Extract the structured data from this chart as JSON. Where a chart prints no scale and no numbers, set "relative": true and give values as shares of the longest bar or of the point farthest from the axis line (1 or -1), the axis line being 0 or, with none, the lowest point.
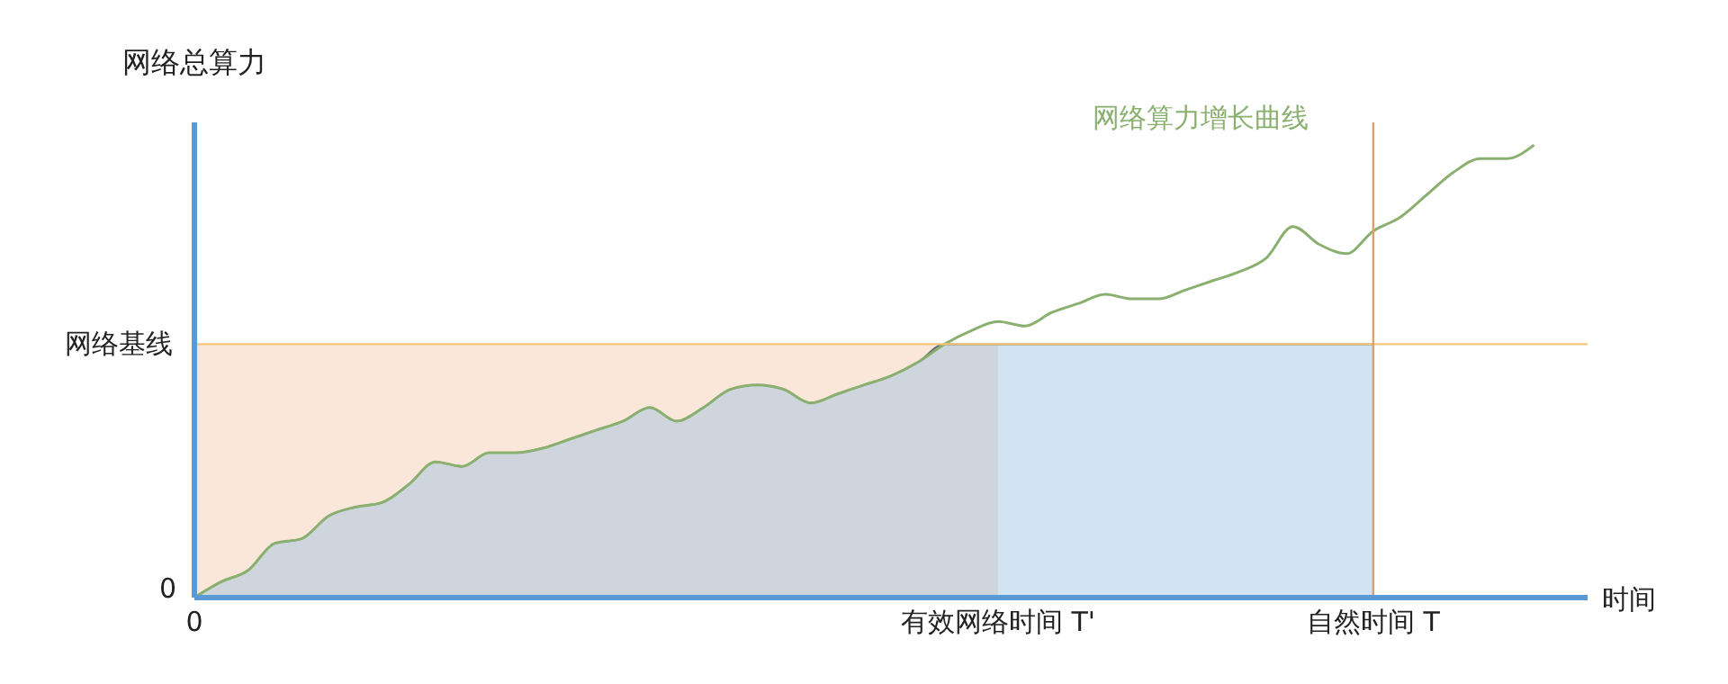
{
  "chart_data": {
    "type": "line",
    "relative": true,
    "ylabel": "网络总算力",
    "xlabel": "时间",
    "categories": [
      "0",
      null,
      null,
      null,
      null,
      null,
      null,
      null,
      null,
      null,
      null,
      null,
      null,
      null,
      null,
      null,
      null,
      null,
      null,
      null,
      null,
      null,
      null,
      null,
      null,
      null,
      null,
      null,
      null,
      null,
      "有效网络时间 T'",
      null,
      null,
      null,
      null,
      null,
      null,
      null,
      null,
      null,
      null,
      null,
      null,
      null,
      "自然时间 T",
      null,
      null,
      null,
      null,
      null,
      null
    ],
    "annotations": [
      "0"
    ],
    "ref_lines": [
      {
        "axis": "y",
        "value": 0.56,
        "label": "网络基线",
        "color": "#f4c87a"
      },
      {
        "axis": "x",
        "value": "自然时间 T",
        "label": null,
        "color": "#d9a070"
      }
    ],
    "series": [
      {
        "type": "area",
        "color": "#fbe7da",
        "values": [
          0.56,
          0.56,
          0.56,
          0.56,
          0.56,
          0.56,
          0.56,
          0.56,
          0.56,
          0.56,
          0.56,
          0.56,
          0.56,
          0.56,
          0.56,
          0.56,
          0.56,
          0.56,
          0.56,
          0.56,
          0.56,
          0.56,
          0.56,
          0.56,
          0.56,
          0.56,
          0.56,
          0.56,
          0.56,
          null,
          null,
          null,
          null,
          null,
          null,
          null,
          null,
          null,
          null,
          null,
          null,
          null,
          null,
          null,
          null,
          null,
          null,
          null,
          null,
          null,
          null
        ]
      },
      {
        "type": "area",
        "color": "#cfd5dc",
        "values": [
          0,
          0.035,
          0.06,
          0.12,
          0.13,
          0.18,
          0.2,
          0.21,
          0.25,
          0.3,
          0.29,
          0.32,
          0.32,
          0.33,
          0.35,
          0.37,
          0.39,
          0.42,
          0.39,
          0.42,
          0.46,
          0.47,
          0.46,
          0.43,
          0.45,
          0.47,
          0.49,
          0.52,
          0.56,
          0.56,
          0.56,
          null,
          null,
          null,
          null,
          null,
          null,
          null,
          null,
          null,
          null,
          null,
          null,
          null,
          null,
          null,
          null,
          null,
          null,
          null,
          null
        ]
      },
      {
        "type": "area",
        "color": "#d2e3f3",
        "values": [
          null,
          null,
          null,
          null,
          null,
          null,
          null,
          null,
          null,
          null,
          null,
          null,
          null,
          null,
          null,
          null,
          null,
          null,
          null,
          null,
          null,
          null,
          null,
          null,
          null,
          null,
          null,
          null,
          null,
          null,
          0.56,
          0.56,
          0.56,
          0.56,
          0.56,
          0.56,
          0.56,
          0.56,
          0.56,
          0.56,
          0.56,
          0.56,
          0.56,
          0.56,
          0.56,
          null,
          null,
          null,
          null,
          null,
          null
        ]
      },
      {
        "name": "网络算力增长曲线",
        "color": "#8ab070",
        "values": [
          0,
          0.035,
          0.06,
          0.12,
          0.13,
          0.18,
          0.2,
          0.21,
          0.25,
          0.3,
          0.29,
          0.32,
          0.32,
          0.33,
          0.35,
          0.37,
          0.39,
          0.42,
          0.39,
          0.42,
          0.46,
          0.47,
          0.46,
          0.43,
          0.45,
          0.47,
          0.49,
          0.52,
          0.56,
          0.59,
          0.61,
          0.6,
          0.63,
          0.65,
          0.67,
          0.66,
          0.66,
          0.68,
          0.7,
          0.72,
          0.75,
          0.82,
          0.78,
          0.76,
          0.81,
          0.84,
          0.89,
          0.94,
          0.97,
          0.97,
          1
        ]
      }
    ],
    "grid": false,
    "legend": false,
    "marker": "none",
    "line_style": "solid"
  }
}
